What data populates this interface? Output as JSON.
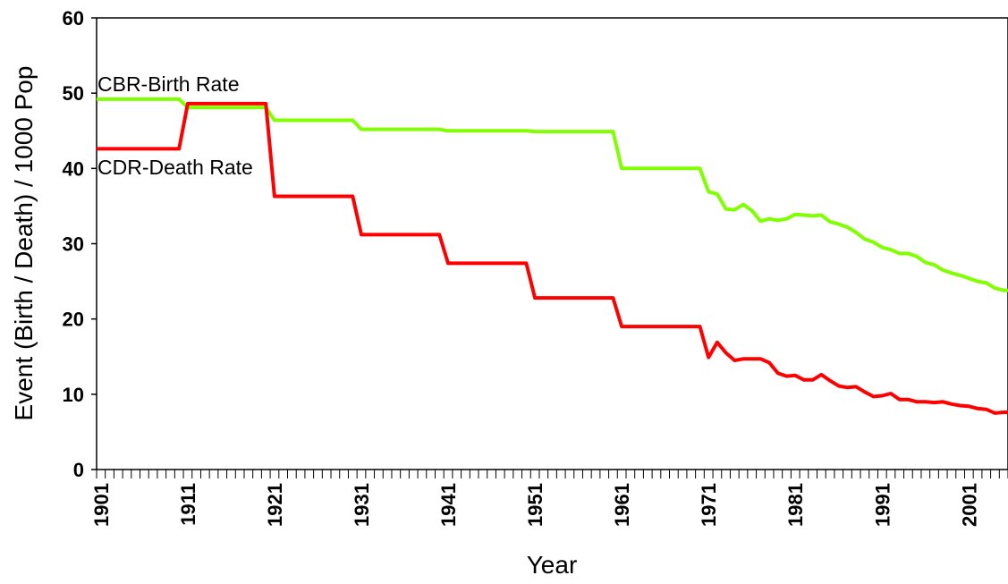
{
  "chart_data": {
    "type": "line",
    "title": "",
    "xlabel": "Year",
    "ylabel": "Event (Birth / Death) / 1000 Pop",
    "xlim": [
      1901,
      2005
    ],
    "ylim": [
      0,
      60
    ],
    "yticks": [
      0,
      10,
      20,
      30,
      40,
      50,
      60
    ],
    "xticks": [
      1901,
      1911,
      1921,
      1931,
      1941,
      1951,
      1961,
      1971,
      1981,
      1991,
      2001
    ],
    "grid": false,
    "legend": "inline-labels",
    "series": [
      {
        "name": "CBR-Birth Rate",
        "color": "#80ff00",
        "points": [
          [
            1901,
            49.2
          ],
          [
            1910,
            49.2
          ],
          [
            1911,
            48.1
          ],
          [
            1920,
            48.1
          ],
          [
            1921,
            46.4
          ],
          [
            1930,
            46.4
          ],
          [
            1931,
            45.2
          ],
          [
            1940,
            45.2
          ],
          [
            1941,
            45.0
          ],
          [
            1950,
            45.0
          ],
          [
            1951,
            44.9
          ],
          [
            1960,
            44.9
          ],
          [
            1961,
            40.0
          ],
          [
            1970,
            40.0
          ],
          [
            1971,
            36.9
          ],
          [
            1972,
            36.6
          ],
          [
            1973,
            34.6
          ],
          [
            1974,
            34.5
          ],
          [
            1975,
            35.2
          ],
          [
            1976,
            34.4
          ],
          [
            1977,
            33.0
          ],
          [
            1978,
            33.3
          ],
          [
            1979,
            33.1
          ],
          [
            1980,
            33.3
          ],
          [
            1981,
            33.9
          ],
          [
            1982,
            33.8
          ],
          [
            1983,
            33.7
          ],
          [
            1984,
            33.8
          ],
          [
            1985,
            32.9
          ],
          [
            1986,
            32.6
          ],
          [
            1987,
            32.2
          ],
          [
            1988,
            31.5
          ],
          [
            1989,
            30.6
          ],
          [
            1990,
            30.2
          ],
          [
            1991,
            29.5
          ],
          [
            1992,
            29.2
          ],
          [
            1993,
            28.7
          ],
          [
            1994,
            28.7
          ],
          [
            1995,
            28.3
          ],
          [
            1996,
            27.5
          ],
          [
            1997,
            27.2
          ],
          [
            1998,
            26.5
          ],
          [
            1999,
            26.1
          ],
          [
            2000,
            25.8
          ],
          [
            2001,
            25.4
          ],
          [
            2002,
            25.0
          ],
          [
            2003,
            24.8
          ],
          [
            2004,
            24.1
          ],
          [
            2005,
            23.8
          ]
        ]
      },
      {
        "name": "CDR-Death Rate",
        "color": "#ff0000",
        "points": [
          [
            1901,
            42.6
          ],
          [
            1910,
            42.6
          ],
          [
            1911,
            48.6
          ],
          [
            1920,
            48.6
          ],
          [
            1921,
            36.3
          ],
          [
            1930,
            36.3
          ],
          [
            1931,
            31.2
          ],
          [
            1940,
            31.2
          ],
          [
            1941,
            27.4
          ],
          [
            1950,
            27.4
          ],
          [
            1951,
            22.8
          ],
          [
            1960,
            22.8
          ],
          [
            1961,
            19.0
          ],
          [
            1970,
            19.0
          ],
          [
            1971,
            14.9
          ],
          [
            1972,
            16.9
          ],
          [
            1973,
            15.5
          ],
          [
            1974,
            14.5
          ],
          [
            1975,
            14.7
          ],
          [
            1976,
            14.7
          ],
          [
            1977,
            14.7
          ],
          [
            1978,
            14.2
          ],
          [
            1979,
            12.8
          ],
          [
            1980,
            12.4
          ],
          [
            1981,
            12.5
          ],
          [
            1982,
            11.9
          ],
          [
            1983,
            11.9
          ],
          [
            1984,
            12.6
          ],
          [
            1985,
            11.8
          ],
          [
            1986,
            11.1
          ],
          [
            1987,
            10.9
          ],
          [
            1988,
            11.0
          ],
          [
            1989,
            10.3
          ],
          [
            1990,
            9.7
          ],
          [
            1991,
            9.8
          ],
          [
            1992,
            10.1
          ],
          [
            1993,
            9.3
          ],
          [
            1994,
            9.3
          ],
          [
            1995,
            9.0
          ],
          [
            1996,
            9.0
          ],
          [
            1997,
            8.9
          ],
          [
            1998,
            9.0
          ],
          [
            1999,
            8.7
          ],
          [
            2000,
            8.5
          ],
          [
            2001,
            8.4
          ],
          [
            2002,
            8.1
          ],
          [
            2003,
            8.0
          ],
          [
            2004,
            7.5
          ],
          [
            2005,
            7.6
          ]
        ]
      }
    ]
  }
}
